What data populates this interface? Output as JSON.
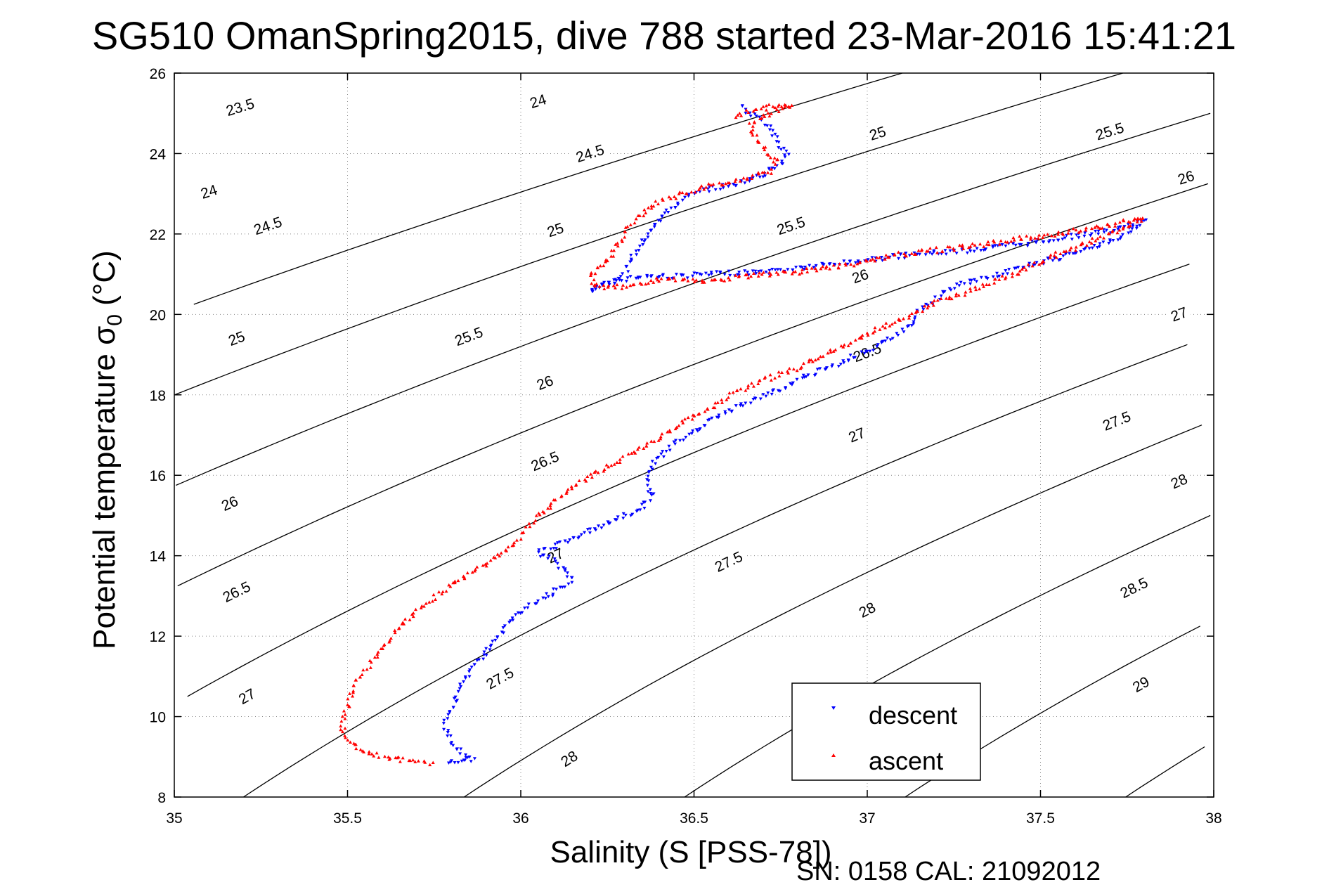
{
  "chart_data": {
    "type": "scatter",
    "title": "SG510 OmanSpring2015, dive 788 started 23-Mar-2016 15:41:21",
    "xlabel": "Salinity (S [PSS-78])",
    "ylabel_main": "Potential temperature σ",
    "ylabel_sub": "0",
    "ylabel_unit": " (°C)",
    "xlim": [
      35,
      38
    ],
    "ylim": [
      8,
      26
    ],
    "xticks": [
      35,
      35.5,
      36,
      36.5,
      37,
      37.5,
      38
    ],
    "xtick_labels": [
      "35",
      "35.5",
      "36",
      "36.5",
      "37",
      "37.5",
      "38"
    ],
    "yticks": [
      8,
      10,
      12,
      14,
      16,
      18,
      20,
      22,
      24,
      26
    ],
    "ytick_labels": [
      "8",
      "10",
      "12",
      "14",
      "16",
      "18",
      "20",
      "22",
      "24",
      "26"
    ],
    "grid": true,
    "legend_position": "bottom-right",
    "isopycnals": [
      {
        "sigma": 23.5,
        "label": "23.5"
      },
      {
        "sigma": 24,
        "label": "24"
      },
      {
        "sigma": 24.5,
        "label": "24.5"
      },
      {
        "sigma": 25,
        "label": "25"
      },
      {
        "sigma": 25.5,
        "label": "25.5"
      },
      {
        "sigma": 26,
        "label": "26"
      },
      {
        "sigma": 26.5,
        "label": "26.5"
      },
      {
        "sigma": 27,
        "label": "27"
      },
      {
        "sigma": 27.5,
        "label": "27.5"
      },
      {
        "sigma": 28,
        "label": "28"
      },
      {
        "sigma": 28.5,
        "label": "28.5"
      },
      {
        "sigma": 29,
        "label": "29"
      }
    ],
    "contour_labels": [
      {
        "text": "23.5",
        "s": 35.19,
        "t": 25.15
      },
      {
        "text": "24",
        "s": 35.1,
        "t": 23.05
      },
      {
        "text": "24.5",
        "s": 35.27,
        "t": 22.2
      },
      {
        "text": "25",
        "s": 35.18,
        "t": 19.4
      },
      {
        "text": "24",
        "s": 36.05,
        "t": 25.3
      },
      {
        "text": "24.5",
        "s": 36.2,
        "t": 24.0
      },
      {
        "text": "25",
        "s": 36.1,
        "t": 22.1
      },
      {
        "text": "25.5",
        "s": 35.85,
        "t": 19.45
      },
      {
        "text": "26",
        "s": 36.07,
        "t": 18.3
      },
      {
        "text": "26",
        "s": 35.16,
        "t": 15.3
      },
      {
        "text": "26.5",
        "s": 35.18,
        "t": 13.1
      },
      {
        "text": "27",
        "s": 35.21,
        "t": 10.5
      },
      {
        "text": "25",
        "s": 37.03,
        "t": 24.5
      },
      {
        "text": "25.5",
        "s": 36.78,
        "t": 22.2
      },
      {
        "text": "26",
        "s": 36.98,
        "t": 20.95
      },
      {
        "text": "26.5",
        "s": 36.07,
        "t": 16.35
      },
      {
        "text": "27",
        "s": 36.1,
        "t": 14.0
      },
      {
        "text": "27.5",
        "s": 35.94,
        "t": 10.95
      },
      {
        "text": "28",
        "s": 36.14,
        "t": 8.95
      },
      {
        "text": "25.5",
        "s": 37.7,
        "t": 24.55
      },
      {
        "text": "26",
        "s": 37.92,
        "t": 23.4
      },
      {
        "text": "26.5",
        "s": 37.0,
        "t": 19.05
      },
      {
        "text": "27",
        "s": 36.97,
        "t": 17.0
      },
      {
        "text": "27",
        "s": 37.9,
        "t": 20.0
      },
      {
        "text": "27.5",
        "s": 37.72,
        "t": 17.35
      },
      {
        "text": "28",
        "s": 37.9,
        "t": 15.85
      },
      {
        "text": "27.5",
        "s": 36.6,
        "t": 13.85
      },
      {
        "text": "28",
        "s": 37.0,
        "t": 12.65
      },
      {
        "text": "28.5",
        "s": 37.77,
        "t": 13.2
      },
      {
        "text": "29",
        "s": 37.79,
        "t": 10.8
      }
    ],
    "series": [
      {
        "name": "descent",
        "marker": "triangle-down",
        "color": "#0000ff",
        "path": [
          [
            36.64,
            25.2
          ],
          [
            36.66,
            25.0
          ],
          [
            36.7,
            24.8
          ],
          [
            36.72,
            24.6
          ],
          [
            36.74,
            24.4
          ],
          [
            36.75,
            24.2
          ],
          [
            36.77,
            24.0
          ],
          [
            36.76,
            23.8
          ],
          [
            36.72,
            23.6
          ],
          [
            36.68,
            23.4
          ],
          [
            36.62,
            23.25
          ],
          [
            36.52,
            23.05
          ],
          [
            36.46,
            22.8
          ],
          [
            36.42,
            22.5
          ],
          [
            36.38,
            22.2
          ],
          [
            36.35,
            21.8
          ],
          [
            36.32,
            21.4
          ],
          [
            36.3,
            21.0
          ],
          [
            36.25,
            20.75
          ],
          [
            36.2,
            20.55
          ],
          [
            36.25,
            20.8
          ],
          [
            36.35,
            20.95
          ],
          [
            36.45,
            20.95
          ],
          [
            36.55,
            21.0
          ],
          [
            36.7,
            21.05
          ],
          [
            36.85,
            21.2
          ],
          [
            37.0,
            21.35
          ],
          [
            37.15,
            21.5
          ],
          [
            37.3,
            21.6
          ],
          [
            37.45,
            21.75
          ],
          [
            37.6,
            21.95
          ],
          [
            37.72,
            22.1
          ],
          [
            37.8,
            22.3
          ],
          [
            37.7,
            21.8
          ],
          [
            37.55,
            21.4
          ],
          [
            37.4,
            21.05
          ],
          [
            37.25,
            20.7
          ],
          [
            37.15,
            20.1
          ],
          [
            37.12,
            19.7
          ],
          [
            37.05,
            19.3
          ],
          [
            36.95,
            18.9
          ],
          [
            36.85,
            18.55
          ],
          [
            36.75,
            18.15
          ],
          [
            36.65,
            17.8
          ],
          [
            36.55,
            17.35
          ],
          [
            36.48,
            17.0
          ],
          [
            36.42,
            16.6
          ],
          [
            36.38,
            16.3
          ],
          [
            36.36,
            15.9
          ],
          [
            36.38,
            15.5
          ],
          [
            36.35,
            15.2
          ],
          [
            36.25,
            14.8
          ],
          [
            36.15,
            14.4
          ],
          [
            36.05,
            14.1
          ],
          [
            36.12,
            13.7
          ],
          [
            36.15,
            13.4
          ],
          [
            36.08,
            13.0
          ],
          [
            36.0,
            12.6
          ],
          [
            35.95,
            12.2
          ],
          [
            35.92,
            11.8
          ],
          [
            35.88,
            11.4
          ],
          [
            35.84,
            11.0
          ],
          [
            35.82,
            10.6
          ],
          [
            35.8,
            10.2
          ],
          [
            35.78,
            9.8
          ],
          [
            35.8,
            9.4
          ],
          [
            35.83,
            9.1
          ],
          [
            35.86,
            8.9
          ],
          [
            35.78,
            8.82
          ]
        ]
      },
      {
        "name": "ascent",
        "marker": "triangle-up",
        "color": "#ff0000",
        "path": [
          [
            36.62,
            24.9
          ],
          [
            36.68,
            25.1
          ],
          [
            36.74,
            25.2
          ],
          [
            36.78,
            25.2
          ],
          [
            36.72,
            25.0
          ],
          [
            36.66,
            24.7
          ],
          [
            36.68,
            24.4
          ],
          [
            36.7,
            24.1
          ],
          [
            36.74,
            23.8
          ],
          [
            36.72,
            23.55
          ],
          [
            36.6,
            23.3
          ],
          [
            36.5,
            23.1
          ],
          [
            36.4,
            22.8
          ],
          [
            36.35,
            22.5
          ],
          [
            36.3,
            22.1
          ],
          [
            36.28,
            21.7
          ],
          [
            36.25,
            21.3
          ],
          [
            36.2,
            21.0
          ],
          [
            36.22,
            20.65
          ],
          [
            36.3,
            20.7
          ],
          [
            36.42,
            20.9
          ],
          [
            36.52,
            20.8
          ],
          [
            36.65,
            20.95
          ],
          [
            36.8,
            21.05
          ],
          [
            36.95,
            21.25
          ],
          [
            37.1,
            21.5
          ],
          [
            37.3,
            21.7
          ],
          [
            37.5,
            21.95
          ],
          [
            37.65,
            22.15
          ],
          [
            37.8,
            22.4
          ],
          [
            37.7,
            22.0
          ],
          [
            37.55,
            21.5
          ],
          [
            37.45,
            21.1
          ],
          [
            37.3,
            20.6
          ],
          [
            37.2,
            20.3
          ],
          [
            37.1,
            19.9
          ],
          [
            37.0,
            19.5
          ],
          [
            36.9,
            19.1
          ],
          [
            36.78,
            18.6
          ],
          [
            36.65,
            18.2
          ],
          [
            36.55,
            17.7
          ],
          [
            36.45,
            17.2
          ],
          [
            36.35,
            16.7
          ],
          [
            36.25,
            16.2
          ],
          [
            36.15,
            15.7
          ],
          [
            36.05,
            15.0
          ],
          [
            35.98,
            14.3
          ],
          [
            35.9,
            13.8
          ],
          [
            35.8,
            13.3
          ],
          [
            35.72,
            12.8
          ],
          [
            35.65,
            12.2
          ],
          [
            35.58,
            11.5
          ],
          [
            35.52,
            10.8
          ],
          [
            35.5,
            10.2
          ],
          [
            35.48,
            9.8
          ],
          [
            35.5,
            9.4
          ],
          [
            35.55,
            9.1
          ],
          [
            35.65,
            8.95
          ],
          [
            35.75,
            8.82
          ]
        ]
      }
    ]
  },
  "footer": {
    "text": "SN: 0158  CAL: 21092012"
  }
}
